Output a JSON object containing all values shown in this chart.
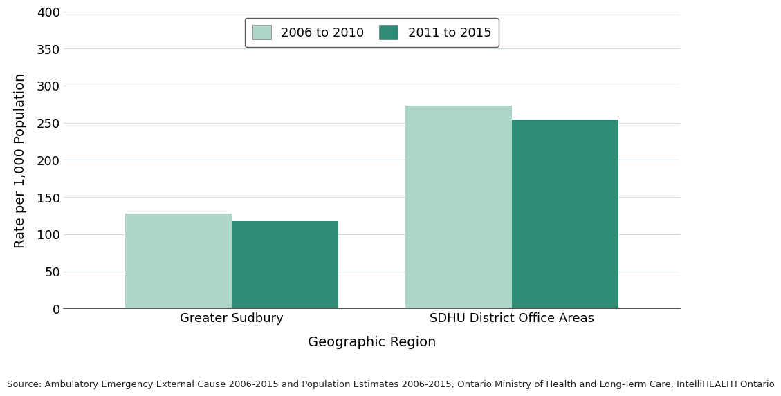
{
  "categories": [
    "Greater Sudbury",
    "SDHU District Office Areas"
  ],
  "series": [
    {
      "label": "2006 to 2010",
      "values": [
        128,
        273
      ],
      "color": "#aed6c8"
    },
    {
      "label": "2011 to 2015",
      "values": [
        118,
        254
      ],
      "color": "#2e8b74"
    }
  ],
  "xlabel": "Geographic Region",
  "ylabel": "Rate per 1,000 Population",
  "ylim": [
    0,
    400
  ],
  "yticks": [
    0,
    50,
    100,
    150,
    200,
    250,
    300,
    350,
    400
  ],
  "grid_color": "#d0dde8",
  "background_color": "#ffffff",
  "bar_width": 0.38,
  "source_text": "Source: Ambulatory Emergency External Cause 2006-2015 and Population Estimates 2006-2015, Ontario Ministry of Health and Long-Term Care, IntelliHEALTH Ontario",
  "axis_label_fontsize": 14,
  "tick_fontsize": 13,
  "legend_fontsize": 13,
  "source_fontsize": 9.5
}
